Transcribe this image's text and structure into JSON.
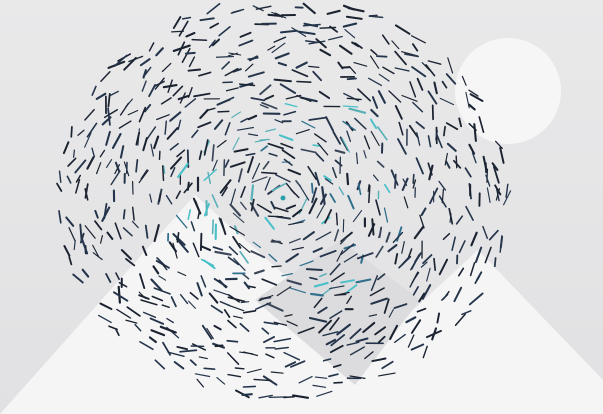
{
  "scene": {
    "background_color": "#ececed",
    "sky_color": "#e7e7e9",
    "mountain_color": "#f5f5f6",
    "moon_color": "#f6f6f7",
    "shadow_color": "#dcdcde",
    "stroke_colors": [
      "#1b2331",
      "#24344a",
      "#2f6f8c",
      "#5ab0b8",
      "#3a4658",
      "#49c0c8"
    ],
    "center_point_color": "#2aa0a8",
    "elements": [
      "moon",
      "left-mountain",
      "right-mountain",
      "center-shadow",
      "particle-vortex"
    ]
  }
}
